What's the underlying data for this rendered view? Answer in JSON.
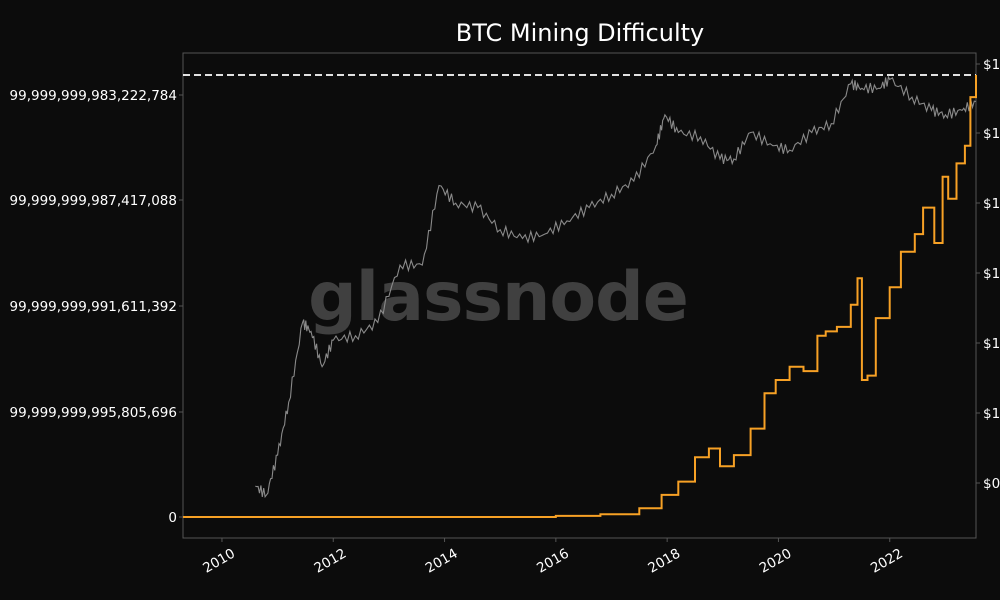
{
  "chart_data": {
    "type": "line",
    "title": "BTC Mining Difficulty",
    "watermark": "glassnode",
    "x_ticks": [
      "2010",
      "2012",
      "2014",
      "2016",
      "2018",
      "2020",
      "2022"
    ],
    "y_left_ticks": [
      "0",
      "99,999,999,995,805,696",
      "99,999,999,991,611,392",
      "99,999,999,987,417,088",
      "99,999,999,983,222,784"
    ],
    "y_right_ticks": [
      "$0",
      "$1",
      "$1",
      "$1",
      "$1",
      "$1",
      "$1"
    ],
    "xlim": [
      2009.3,
      2023.55
    ],
    "colors": {
      "background": "#0c0c0c",
      "difficulty": "#f7a125",
      "price": "#8a8a8a",
      "ath_line": "#ffffff",
      "axes": "#555555"
    },
    "series": [
      {
        "name": "",
        "color": "#f7a125",
        "points": [
          [
            2009.3,
            0
          ],
          [
            2016.0,
            0.0025
          ],
          [
            2016.8,
            0.006
          ],
          [
            2017.5,
            0.02
          ],
          [
            2017.9,
            0.05
          ],
          [
            2018.2,
            0.08
          ],
          [
            2018.5,
            0.135
          ],
          [
            2018.75,
            0.155
          ],
          [
            2018.95,
            0.115
          ],
          [
            2019.2,
            0.14
          ],
          [
            2019.5,
            0.2
          ],
          [
            2019.75,
            0.28
          ],
          [
            2019.95,
            0.31
          ],
          [
            2020.2,
            0.34
          ],
          [
            2020.45,
            0.33
          ],
          [
            2020.7,
            0.41
          ],
          [
            2020.85,
            0.42
          ],
          [
            2021.05,
            0.43
          ],
          [
            2021.3,
            0.48
          ],
          [
            2021.42,
            0.54
          ],
          [
            2021.5,
            0.31
          ],
          [
            2021.6,
            0.32
          ],
          [
            2021.75,
            0.45
          ],
          [
            2022.0,
            0.52
          ],
          [
            2022.2,
            0.6
          ],
          [
            2022.45,
            0.64
          ],
          [
            2022.6,
            0.7
          ],
          [
            2022.8,
            0.62
          ],
          [
            2022.95,
            0.77
          ],
          [
            2023.05,
            0.72
          ],
          [
            2023.2,
            0.8
          ],
          [
            2023.35,
            0.84
          ],
          [
            2023.45,
            0.95
          ],
          [
            2023.55,
            1.0
          ]
        ]
      },
      {
        "name": "",
        "color": "#8a8a8a",
        "points": [
          [
            2010.6,
            0.07
          ],
          [
            2010.8,
            0.05
          ],
          [
            2011.0,
            0.14
          ],
          [
            2011.2,
            0.26
          ],
          [
            2011.45,
            0.44
          ],
          [
            2011.6,
            0.42
          ],
          [
            2011.8,
            0.34
          ],
          [
            2012.0,
            0.4
          ],
          [
            2012.4,
            0.41
          ],
          [
            2012.8,
            0.44
          ],
          [
            2013.2,
            0.57
          ],
          [
            2013.6,
            0.57
          ],
          [
            2013.9,
            0.75
          ],
          [
            2014.2,
            0.71
          ],
          [
            2014.6,
            0.7
          ],
          [
            2015.0,
            0.65
          ],
          [
            2015.4,
            0.63
          ],
          [
            2015.8,
            0.64
          ],
          [
            2016.2,
            0.67
          ],
          [
            2016.6,
            0.7
          ],
          [
            2017.0,
            0.73
          ],
          [
            2017.4,
            0.76
          ],
          [
            2017.8,
            0.84
          ],
          [
            2017.96,
            0.91
          ],
          [
            2018.2,
            0.87
          ],
          [
            2018.6,
            0.86
          ],
          [
            2018.95,
            0.81
          ],
          [
            2019.2,
            0.81
          ],
          [
            2019.5,
            0.87
          ],
          [
            2019.9,
            0.84
          ],
          [
            2020.2,
            0.83
          ],
          [
            2020.6,
            0.87
          ],
          [
            2020.95,
            0.89
          ],
          [
            2021.3,
            0.98
          ],
          [
            2021.5,
            0.97
          ],
          [
            2021.8,
            0.97
          ],
          [
            2022.0,
            0.99
          ],
          [
            2022.4,
            0.95
          ],
          [
            2022.75,
            0.92
          ],
          [
            2023.0,
            0.91
          ],
          [
            2023.3,
            0.92
          ],
          [
            2023.55,
            0.94
          ]
        ]
      }
    ],
    "reference_lines": [
      {
        "name": "",
        "style": "dashed",
        "value": 1.0
      }
    ]
  }
}
